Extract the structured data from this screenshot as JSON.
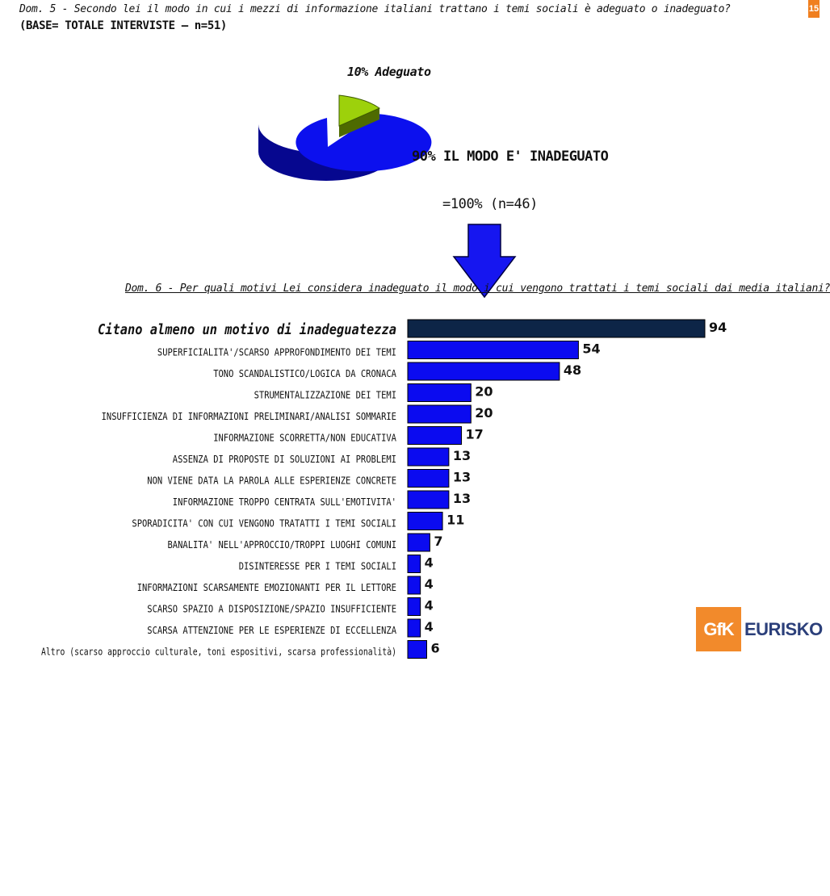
{
  "header": {
    "q5_text": "Dom. 5 -  Secondo lei il modo in cui i mezzi di informazione italiani trattano i temi sociali è adeguato o inadeguato?",
    "base_text": "(BASE= TOTALE INTERVISTE – n=51)",
    "page_badge": "15"
  },
  "pie": {
    "label_adeguato": "10% Adeguato",
    "label_inadeguato": "90% IL MODO E' INADEGUATO",
    "label_base": "=100% (n=46)"
  },
  "q6_text": "Dom. 6 - Per quali motivi Lei considera inadeguato il modo i cui vengono trattati i temi sociali dai media italiani?",
  "logo": {
    "gfk": "GfK",
    "eurisko": "EURISKO"
  },
  "colors": {
    "total_bar": "#0d2547",
    "bar": "#0b0bf0",
    "pie_main": "#0c10ee",
    "pie_slice": "#9dd10b",
    "arrow": "#1616f0"
  },
  "chart_data": [
    {
      "type": "pie",
      "slices": [
        {
          "label": "10% Adeguato",
          "value": 10,
          "color": "#9dd10b"
        },
        {
          "label": "90% IL MODO E' INADEGUATO",
          "value": 90,
          "color": "#0c10ee"
        }
      ]
    },
    {
      "type": "bar",
      "orientation": "horizontal",
      "categories": [
        "Citano almeno un motivo di inadeguatezza",
        "SUPERFICIALITA'/SCARSO APPROFONDIMENTO DEI TEMI",
        "TONO SCANDALISTICO/LOGICA DA CRONACA",
        "STRUMENTALIZZAZIONE DEI TEMI",
        "INSUFFICIENZA DI INFORMAZIONI PRELIMINARI/ANALISI SOMMARIE",
        "INFORMAZIONE SCORRETTA/NON EDUCATIVA",
        "ASSENZA DI PROPOSTE DI SOLUZIONI AI PROBLEMI",
        "NON VIENE DATA LA PAROLA ALLE ESPERIENZE CONCRETE",
        "INFORMAZIONE TROPPO CENTRATA SULL'EMOTIVITA'",
        "SPORADICITA' CON CUI VENGONO TRATATTI I TEMI SOCIALI",
        "BANALITA' NELL'APPROCCIO/TROPPI LUOGHI COMUNI",
        "DISINTERESSE PER I TEMI SOCIALI",
        "INFORMAZIONI SCARSAMENTE EMOZIONANTI PER IL LETTORE",
        "SCARSO SPAZIO A DISPOSIZIONE/SPAZIO INSUFFICIENTE",
        "SCARSA ATTENZIONE PER LE ESPERIENZE DI ECCELLENZA",
        "Altro (scarso approccio culturale, toni espositivi, scarsa professionalità)"
      ],
      "values": [
        94,
        54,
        48,
        20,
        20,
        17,
        13,
        13,
        13,
        11,
        7,
        4,
        4,
        4,
        4,
        6
      ],
      "xlim": [
        0,
        94
      ],
      "grid": false,
      "legend": "none"
    }
  ]
}
